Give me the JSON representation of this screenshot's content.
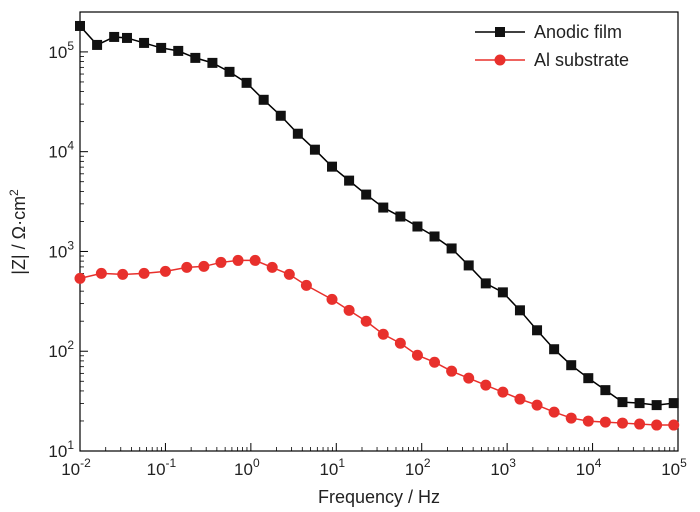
{
  "chart_data": {
    "type": "line",
    "title": "",
    "xlabel": "Frequency / Hz",
    "ylabel": "|Z| / Ω·cm²",
    "ylabel_parts": {
      "main": "|Z| / Ω·cm",
      "sup": "2"
    },
    "xscale": "log",
    "yscale": "log",
    "xlim_exp": [
      -2,
      5
    ],
    "ylim_exp": [
      1,
      5.4
    ],
    "x_ticks": [
      {
        "base": "10",
        "exp": "-2"
      },
      {
        "base": "10",
        "exp": "-1"
      },
      {
        "base": "10",
        "exp": "0"
      },
      {
        "base": "10",
        "exp": "1"
      },
      {
        "base": "10",
        "exp": "2"
      },
      {
        "base": "10",
        "exp": "3"
      },
      {
        "base": "10",
        "exp": "4"
      },
      {
        "base": "10",
        "exp": "5"
      }
    ],
    "y_ticks": [
      {
        "base": "10",
        "exp": "1"
      },
      {
        "base": "10",
        "exp": "2"
      },
      {
        "base": "10",
        "exp": "3"
      },
      {
        "base": "10",
        "exp": "4"
      },
      {
        "base": "10",
        "exp": "5"
      }
    ],
    "legend_position": "top-right",
    "grid": false,
    "series": [
      {
        "name": "Anodic film",
        "color": "#000000",
        "marker": "square",
        "x_log": [
          -2.0,
          -1.8,
          -1.6,
          -1.45,
          -1.25,
          -1.05,
          -0.85,
          -0.65,
          -0.45,
          -0.25,
          -0.05,
          0.15,
          0.35,
          0.55,
          0.75,
          0.95,
          1.15,
          1.35,
          1.55,
          1.75,
          1.95,
          2.15,
          2.35,
          2.55,
          2.75,
          2.95,
          3.15,
          3.35,
          3.55,
          3.75,
          3.95,
          4.15,
          4.35,
          4.55,
          4.75,
          4.95
        ],
        "y_log": [
          5.26,
          5.07,
          5.15,
          5.14,
          5.09,
          5.04,
          5.01,
          4.94,
          4.89,
          4.8,
          4.69,
          4.52,
          4.36,
          4.18,
          4.02,
          3.85,
          3.71,
          3.57,
          3.44,
          3.35,
          3.25,
          3.15,
          3.03,
          2.86,
          2.68,
          2.59,
          2.41,
          2.21,
          2.02,
          1.86,
          1.73,
          1.61,
          1.49,
          1.48,
          1.46,
          1.48
        ]
      },
      {
        "name": "Al substrate",
        "color": "#e8302c",
        "marker": "circle",
        "x_log": [
          -2.0,
          -1.75,
          -1.5,
          -1.25,
          -1.0,
          -0.75,
          -0.55,
          -0.35,
          -0.15,
          0.05,
          0.25,
          0.45,
          0.65,
          0.95,
          1.15,
          1.35,
          1.55,
          1.75,
          1.95,
          2.15,
          2.35,
          2.55,
          2.75,
          2.95,
          3.15,
          3.35,
          3.55,
          3.75,
          3.95,
          4.15,
          4.35,
          4.55,
          4.75,
          4.95
        ],
        "y_log": [
          2.73,
          2.78,
          2.77,
          2.78,
          2.8,
          2.84,
          2.85,
          2.89,
          2.91,
          2.91,
          2.84,
          2.77,
          2.66,
          2.52,
          2.41,
          2.3,
          2.17,
          2.08,
          1.96,
          1.89,
          1.8,
          1.73,
          1.66,
          1.59,
          1.52,
          1.46,
          1.39,
          1.33,
          1.3,
          1.29,
          1.28,
          1.27,
          1.26,
          1.26
        ]
      }
    ]
  }
}
